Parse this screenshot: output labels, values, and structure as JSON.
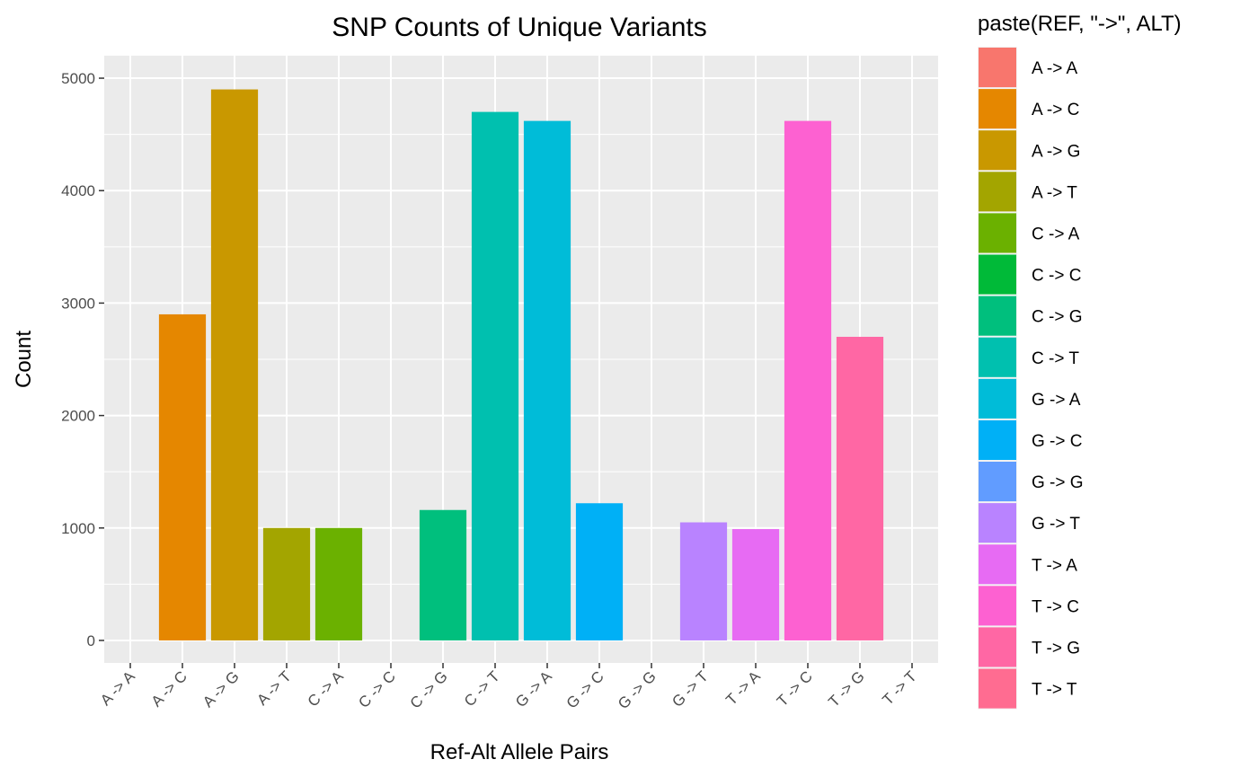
{
  "chart_data": {
    "type": "bar",
    "title": "SNP Counts of Unique Variants",
    "xlabel": "Ref-Alt Allele Pairs",
    "ylabel": "Count",
    "ylim": [
      -200,
      5200
    ],
    "yticks": [
      0,
      1000,
      2000,
      3000,
      4000,
      5000
    ],
    "grid": true,
    "legend_position": "right",
    "legend_title": "paste(REF, \"->\", ALT)",
    "categories": [
      "A -> A",
      "A -> C",
      "A -> G",
      "A -> T",
      "C -> A",
      "C -> C",
      "C -> G",
      "C -> T",
      "G -> A",
      "G -> C",
      "G -> G",
      "G -> T",
      "T -> A",
      "T -> C",
      "T -> G",
      "T -> T"
    ],
    "values": [
      0,
      2900,
      4900,
      1000,
      1000,
      0,
      1160,
      4700,
      4620,
      1220,
      0,
      1050,
      990,
      4620,
      2700,
      0
    ],
    "colors": [
      "#F8766D",
      "#E58700",
      "#C99800",
      "#A3A500",
      "#6BB100",
      "#00BA38",
      "#00BF7D",
      "#00C0AF",
      "#00BCD8",
      "#00B0F6",
      "#619CFF",
      "#B983FF",
      "#E76BF3",
      "#FD61D1",
      "#FF67A4",
      "#FF6C91"
    ]
  }
}
